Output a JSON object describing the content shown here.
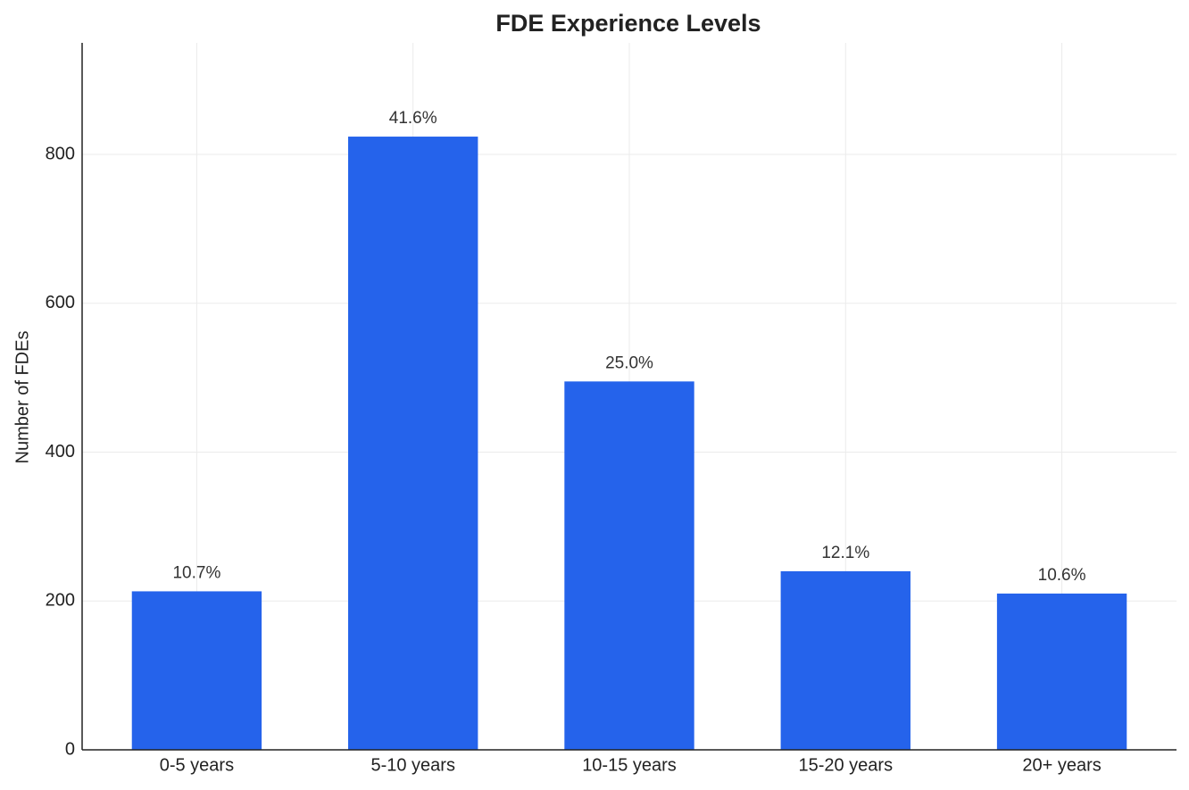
{
  "chart_data": {
    "type": "bar",
    "title": "FDE Experience Levels",
    "ylabel": "Number of FDEs",
    "categories": [
      "0-5 years",
      "5-10 years",
      "10-15 years",
      "15-20 years",
      "20+ years"
    ],
    "values": [
      213,
      824,
      495,
      240,
      210
    ],
    "bar_labels": [
      "10.7%",
      "41.6%",
      "25.0%",
      "12.1%",
      "10.6%"
    ],
    "color": "#2563eb",
    "ylim": [
      0,
      950
    ],
    "yticks": [
      0,
      200,
      400,
      600,
      800
    ],
    "grid": true
  }
}
